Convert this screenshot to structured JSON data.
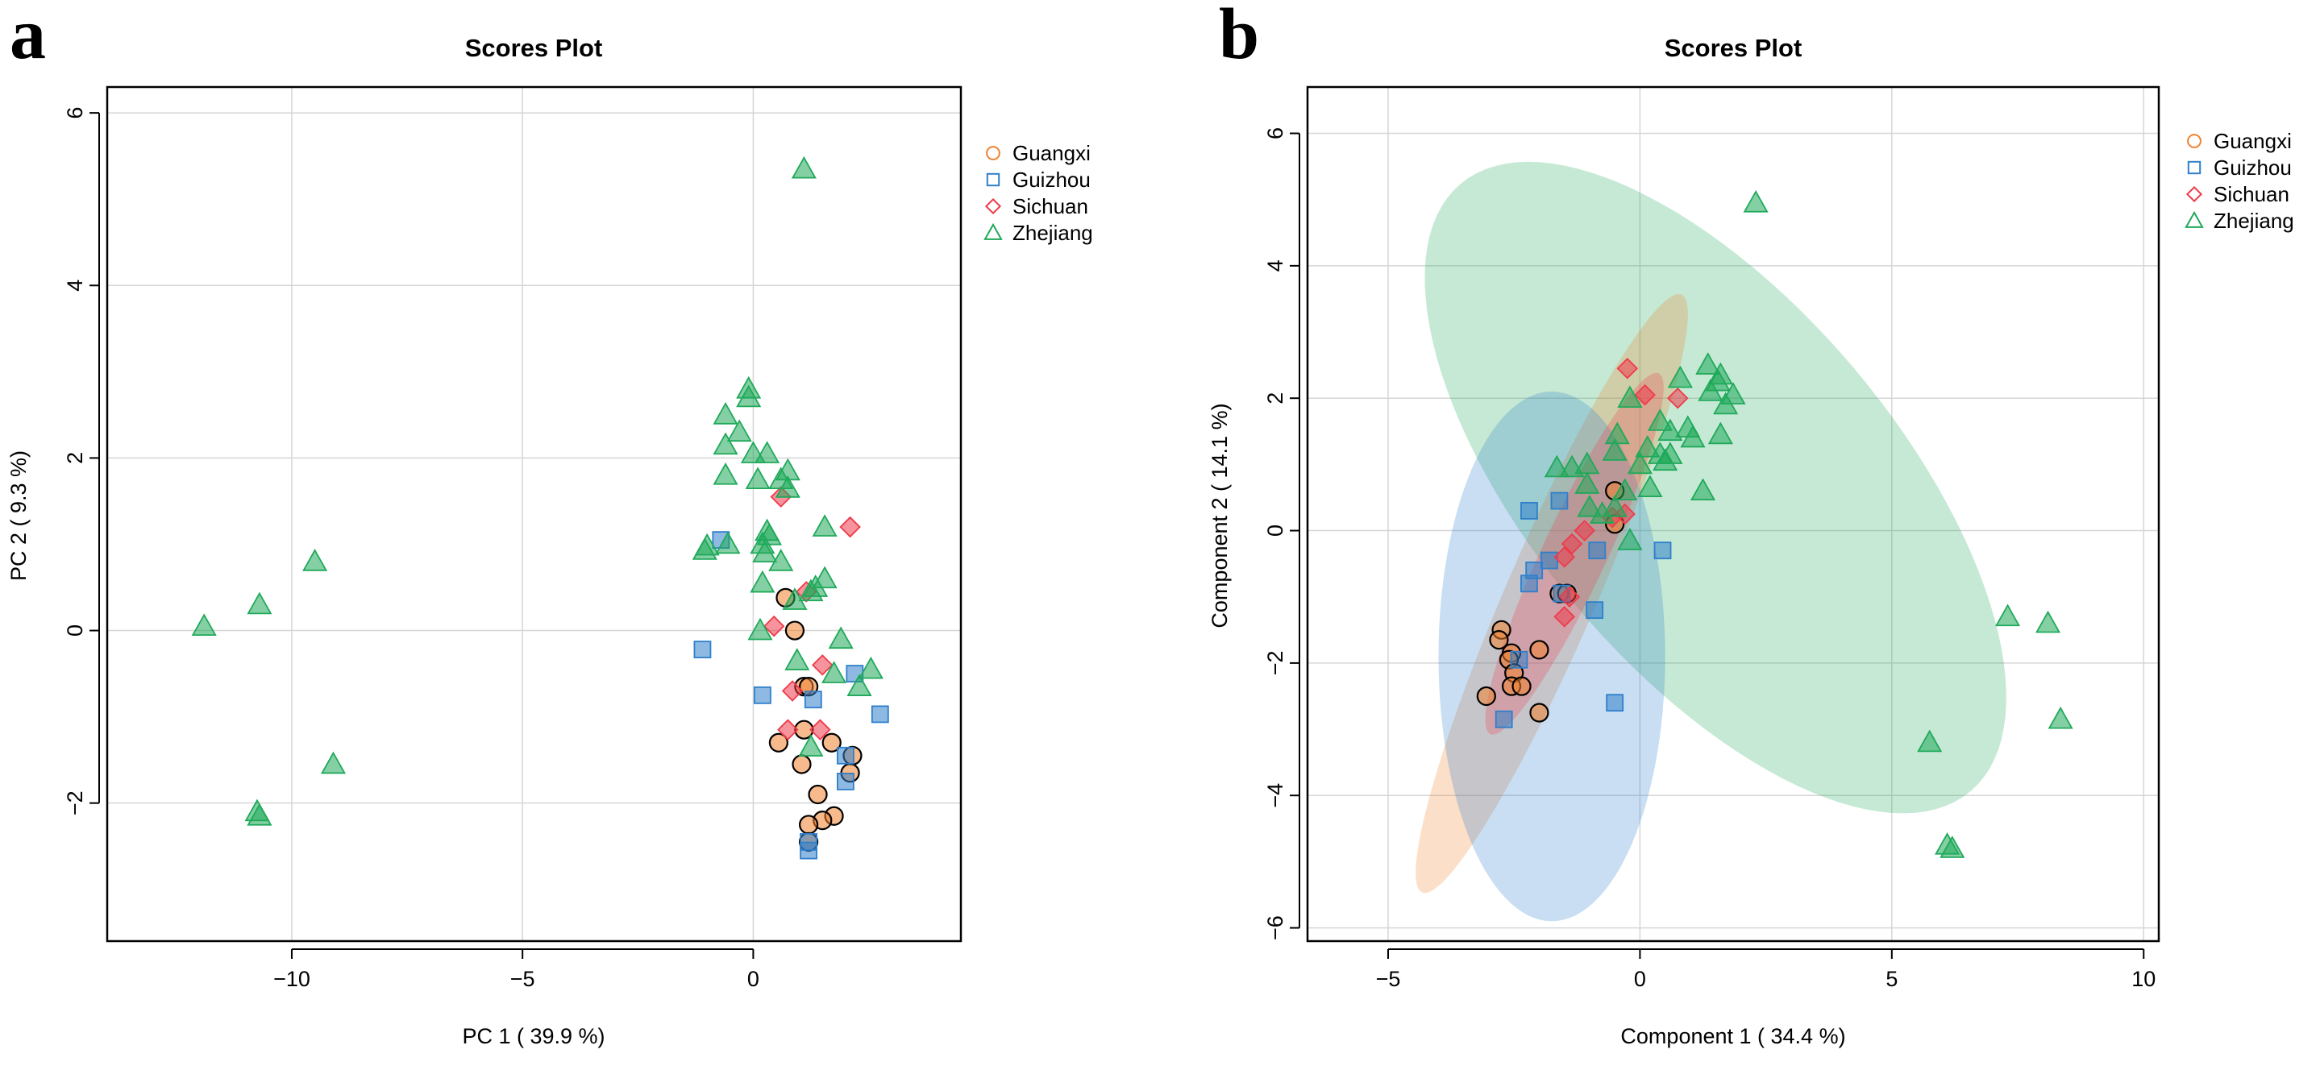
{
  "colors": {
    "Guangxi": "#f0822e",
    "Guizhou": "#2f7fcb",
    "Sichuan": "#ee3b4a",
    "Zhejiang": "#1fa95a",
    "grid": "#d6d6d6",
    "axis": "#000000"
  },
  "chart_data": [
    {
      "panel": "a",
      "type": "scatter",
      "title": "Scores Plot",
      "xlabel": "PC 1 ( 39.9 %)",
      "ylabel": "PC 2 ( 9.3 %)",
      "xlim": [
        -14,
        4.5
      ],
      "ylim": [
        -3.6,
        6.3
      ],
      "xticks": [
        -10,
        -5,
        0
      ],
      "yticks": [
        -2,
        0,
        2,
        4,
        6
      ],
      "xtick_labels": [
        "−10",
        "−5",
        "0"
      ],
      "ytick_labels": [
        "−2",
        "0",
        "2",
        "4",
        "6"
      ],
      "grid": true,
      "legend_position": "outside-top-right",
      "series": [
        {
          "name": "Guangxi",
          "marker": "circle",
          "points": [
            [
              0.7,
              0.38
            ],
            [
              0.9,
              0.0
            ],
            [
              1.1,
              -0.65
            ],
            [
              1.2,
              -0.65
            ],
            [
              0.55,
              -1.3
            ],
            [
              1.1,
              -1.15
            ],
            [
              1.05,
              -1.55
            ],
            [
              1.7,
              -1.3
            ],
            [
              2.15,
              -1.45
            ],
            [
              2.1,
              -1.65
            ],
            [
              1.4,
              -1.9
            ],
            [
              1.75,
              -2.15
            ],
            [
              1.5,
              -2.2
            ],
            [
              1.2,
              -2.25
            ],
            [
              1.2,
              -2.45
            ]
          ]
        },
        {
          "name": "Guizhou",
          "marker": "square",
          "points": [
            [
              -0.7,
              1.05
            ],
            [
              -1.1,
              -0.22
            ],
            [
              0.2,
              -0.75
            ],
            [
              1.3,
              -0.8
            ],
            [
              2.2,
              -0.5
            ],
            [
              2.75,
              -0.97
            ],
            [
              2.0,
              -1.45
            ],
            [
              2.0,
              -1.75
            ],
            [
              1.2,
              -2.55
            ],
            [
              1.2,
              -2.45
            ]
          ]
        },
        {
          "name": "Sichuan",
          "marker": "diamond",
          "points": [
            [
              0.6,
              1.55
            ],
            [
              2.1,
              1.2
            ],
            [
              1.15,
              0.45
            ],
            [
              0.45,
              0.05
            ],
            [
              0.85,
              -0.7
            ],
            [
              1.5,
              -0.4
            ],
            [
              0.75,
              -1.15
            ],
            [
              1.45,
              -1.15
            ]
          ]
        },
        {
          "name": "Zhejiang",
          "marker": "triangle",
          "points": [
            [
              1.1,
              5.35
            ],
            [
              -0.1,
              2.8
            ],
            [
              -0.1,
              2.7
            ],
            [
              -0.6,
              2.5
            ],
            [
              -0.3,
              2.3
            ],
            [
              -0.6,
              2.15
            ],
            [
              0.0,
              2.05
            ],
            [
              0.3,
              2.05
            ],
            [
              0.75,
              1.85
            ],
            [
              -0.6,
              1.8
            ],
            [
              0.6,
              1.75
            ],
            [
              0.1,
              1.75
            ],
            [
              0.75,
              1.65
            ],
            [
              1.55,
              1.2
            ],
            [
              0.3,
              1.15
            ],
            [
              0.35,
              1.1
            ],
            [
              0.2,
              1.0
            ],
            [
              -1.0,
              0.98
            ],
            [
              -1.05,
              0.93
            ],
            [
              -0.55,
              1.0
            ],
            [
              0.25,
              0.9
            ],
            [
              0.6,
              0.8
            ],
            [
              0.2,
              0.55
            ],
            [
              1.55,
              0.6
            ],
            [
              1.35,
              0.5
            ],
            [
              1.25,
              0.45
            ],
            [
              0.9,
              0.35
            ],
            [
              0.15,
              0.0
            ],
            [
              1.9,
              -0.1
            ],
            [
              0.95,
              -0.35
            ],
            [
              1.75,
              -0.5
            ],
            [
              2.55,
              -0.45
            ],
            [
              2.3,
              -0.65
            ],
            [
              1.25,
              -1.35
            ],
            [
              -11.9,
              0.05
            ],
            [
              -10.7,
              0.3
            ],
            [
              -9.5,
              0.8
            ],
            [
              -9.1,
              -1.55
            ],
            [
              -10.75,
              -2.1
            ],
            [
              -10.7,
              -2.15
            ]
          ]
        }
      ]
    },
    {
      "panel": "b",
      "type": "scatter",
      "title": "Scores Plot",
      "xlabel": "Component 1 ( 34.4 %)",
      "ylabel": "Component 2 ( 14.1 %)",
      "xlim": [
        -6.6,
        10.3
      ],
      "ylim": [
        -6.2,
        6.7
      ],
      "xticks": [
        -5,
        0,
        5,
        10
      ],
      "yticks": [
        -6,
        -4,
        -2,
        0,
        2,
        4,
        6
      ],
      "xtick_labels": [
        "−5",
        "0",
        "5",
        "10"
      ],
      "ytick_labels": [
        "−6",
        "−4",
        "−2",
        "0",
        "2",
        "4",
        "6"
      ],
      "grid": true,
      "legend_position": "outside-top-right",
      "ellipses": [
        {
          "name": "Zhejiang",
          "cx": 1.5,
          "cy": 0.65,
          "a": 6.9,
          "b": 3.15,
          "angle_deg": -38
        },
        {
          "name": "Guangxi",
          "cx": -1.75,
          "cy": -0.95,
          "a": 5.2,
          "b": 0.85,
          "angle_deg": 60
        },
        {
          "name": "Guizhou",
          "cx": -1.75,
          "cy": -1.9,
          "a": 2.25,
          "b": 4.0,
          "angle_deg": 0
        },
        {
          "name": "Sichuan",
          "cx": -1.3,
          "cy": -0.35,
          "a": 3.2,
          "b": 0.6,
          "angle_deg": 58
        }
      ],
      "series": [
        {
          "name": "Guangxi",
          "marker": "circle",
          "points": [
            [
              -0.5,
              0.6
            ],
            [
              -0.5,
              0.1
            ],
            [
              -1.6,
              -0.95
            ],
            [
              -1.45,
              -0.95
            ],
            [
              -2.75,
              -1.5
            ],
            [
              -2.8,
              -1.65
            ],
            [
              -2.0,
              -1.8
            ],
            [
              -2.55,
              -1.85
            ],
            [
              -2.6,
              -1.95
            ],
            [
              -2.5,
              -2.15
            ],
            [
              -2.55,
              -2.35
            ],
            [
              -2.35,
              -2.35
            ],
            [
              -3.05,
              -2.5
            ],
            [
              -2.0,
              -2.75
            ]
          ]
        },
        {
          "name": "Guizhou",
          "marker": "square",
          "points": [
            [
              -2.2,
              0.3
            ],
            [
              -1.6,
              0.45
            ],
            [
              -1.8,
              -0.45
            ],
            [
              -2.1,
              -0.6
            ],
            [
              -2.2,
              -0.8
            ],
            [
              -0.85,
              -0.3
            ],
            [
              0.45,
              -0.3
            ],
            [
              -1.55,
              -0.95
            ],
            [
              -0.9,
              -1.2
            ],
            [
              -2.4,
              -1.95
            ],
            [
              -0.5,
              -2.6
            ],
            [
              -2.7,
              -2.85
            ]
          ]
        },
        {
          "name": "Sichuan",
          "marker": "diamond",
          "points": [
            [
              -0.25,
              2.45
            ],
            [
              0.1,
              2.05
            ],
            [
              0.75,
              2.0
            ],
            [
              -1.5,
              -0.4
            ],
            [
              -1.35,
              -0.2
            ],
            [
              -1.1,
              0.0
            ],
            [
              -0.55,
              0.2
            ],
            [
              -1.5,
              -1.3
            ],
            [
              -1.4,
              -1.0
            ],
            [
              -0.3,
              0.25
            ]
          ]
        },
        {
          "name": "Zhejiang",
          "marker": "triangle",
          "points": [
            [
              2.3,
              4.95
            ],
            [
              1.35,
              2.5
            ],
            [
              1.6,
              2.35
            ],
            [
              0.8,
              2.3
            ],
            [
              1.55,
              2.25
            ],
            [
              1.4,
              2.1
            ],
            [
              1.85,
              2.05
            ],
            [
              -0.2,
              2.0
            ],
            [
              1.7,
              1.9
            ],
            [
              0.4,
              1.65
            ],
            [
              0.95,
              1.55
            ],
            [
              0.6,
              1.5
            ],
            [
              -0.45,
              1.45
            ],
            [
              1.6,
              1.45
            ],
            [
              1.05,
              1.4
            ],
            [
              0.15,
              1.25
            ],
            [
              -0.5,
              1.2
            ],
            [
              0.4,
              1.15
            ],
            [
              0.6,
              1.15
            ],
            [
              0.5,
              1.05
            ],
            [
              0.0,
              1.0
            ],
            [
              -1.05,
              1.0
            ],
            [
              -1.35,
              0.95
            ],
            [
              -1.65,
              0.95
            ],
            [
              -1.05,
              0.7
            ],
            [
              -0.3,
              0.6
            ],
            [
              0.2,
              0.65
            ],
            [
              1.25,
              0.6
            ],
            [
              -0.5,
              0.35
            ],
            [
              -1.0,
              0.35
            ],
            [
              -0.75,
              0.25
            ],
            [
              -0.2,
              -0.15
            ],
            [
              7.3,
              -1.3
            ],
            [
              8.1,
              -1.4
            ],
            [
              8.35,
              -2.85
            ],
            [
              5.75,
              -3.2
            ],
            [
              6.1,
              -4.75
            ],
            [
              6.2,
              -4.8
            ]
          ]
        }
      ]
    }
  ]
}
